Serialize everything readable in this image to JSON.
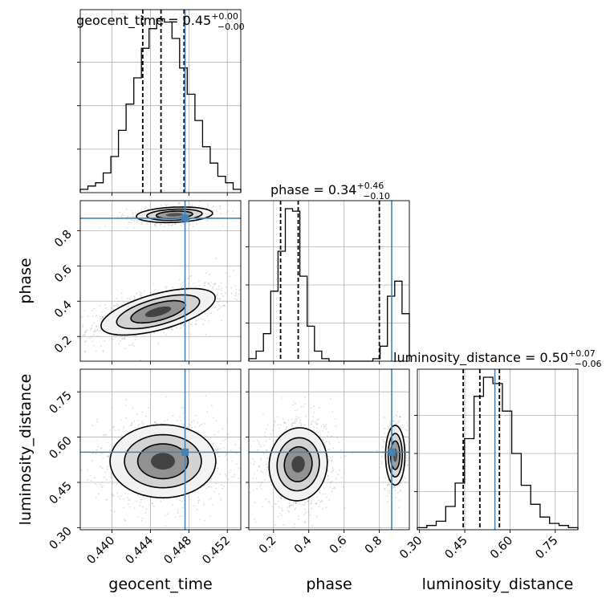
{
  "chart_data": {
    "type": "corner",
    "parameters": [
      "geocent_time",
      "phase",
      "luminosity_distance"
    ],
    "truth_color": "#4682b4",
    "truths": {
      "geocent_time": 0.4476,
      "phase": 0.87,
      "luminosity_distance": 0.55
    },
    "axes": {
      "geocent_time": {
        "range": [
          0.4367,
          0.4534
        ],
        "ticks": [
          0.44,
          0.444,
          0.448,
          0.452
        ],
        "tick_labels": [
          "0.440",
          "0.444",
          "0.448",
          "0.452"
        ]
      },
      "phase": {
        "range": [
          0.06,
          0.97
        ],
        "ticks": [
          0.2,
          0.4,
          0.6,
          0.8
        ],
        "tick_labels": [
          "0.2",
          "0.4",
          "0.6",
          "0.8"
        ]
      },
      "luminosity_distance": {
        "range": [
          0.293,
          0.825
        ],
        "ticks": [
          0.3,
          0.45,
          0.6,
          0.75
        ],
        "tick_labels": [
          "0.30",
          "0.45",
          "0.60",
          "0.75"
        ]
      }
    },
    "titles": [
      {
        "param": "geocent_time",
        "label": "geocent_time = 0.45",
        "upper": "+0.00",
        "lower": "−0.00"
      },
      {
        "param": "phase",
        "label": "phase = 0.34",
        "upper": "+0.46",
        "lower": "−0.10"
      },
      {
        "param": "luminosity_distance",
        "label": "luminosity_distance = 0.50",
        "upper": "+0.07",
        "lower": "−0.06"
      }
    ],
    "quantiles": {
      "geocent_time": [
        0.4432,
        0.4451,
        0.4475
      ],
      "phase": [
        0.24,
        0.34,
        0.8
      ],
      "luminosity_distance": [
        0.445,
        0.5,
        0.565
      ]
    },
    "histograms": {
      "geocent_time": [
        1,
        2,
        3,
        6,
        11,
        19,
        27,
        35,
        44,
        50,
        53,
        52,
        47,
        38,
        30,
        22,
        14,
        9,
        5,
        3,
        1
      ],
      "phase": [
        1,
        4,
        11,
        28,
        44,
        61,
        60,
        34,
        14,
        4,
        1,
        0,
        0,
        0,
        0,
        0,
        0,
        1,
        6,
        26,
        32,
        19
      ],
      "luminosity_distance": [
        1,
        2,
        4,
        11,
        22,
        43,
        63,
        72,
        69,
        56,
        36,
        21,
        12,
        6,
        3,
        2,
        1
      ]
    },
    "contours": {
      "phase_vs_geocent_time": [
        {
          "mu": [
            0.4448,
            0.34
          ],
          "sd": [
            0.0027,
            0.06
          ],
          "rho": 0.6
        },
        {
          "mu": [
            0.4465,
            0.89
          ],
          "sd": [
            0.0018,
            0.02
          ],
          "rho": 0.2
        }
      ],
      "luminosity_distance_vs_geocent_time": [
        {
          "mu": [
            0.4453,
            0.52
          ],
          "sd": [
            0.0025,
            0.055
          ],
          "rho": 0.0
        }
      ],
      "luminosity_distance_vs_phase": [
        {
          "mu": [
            0.34,
            0.51
          ],
          "sd": [
            0.075,
            0.055
          ],
          "rho": 0.05
        },
        {
          "mu": [
            0.89,
            0.54
          ],
          "sd": [
            0.025,
            0.045
          ],
          "rho": 0.0
        }
      ]
    }
  }
}
